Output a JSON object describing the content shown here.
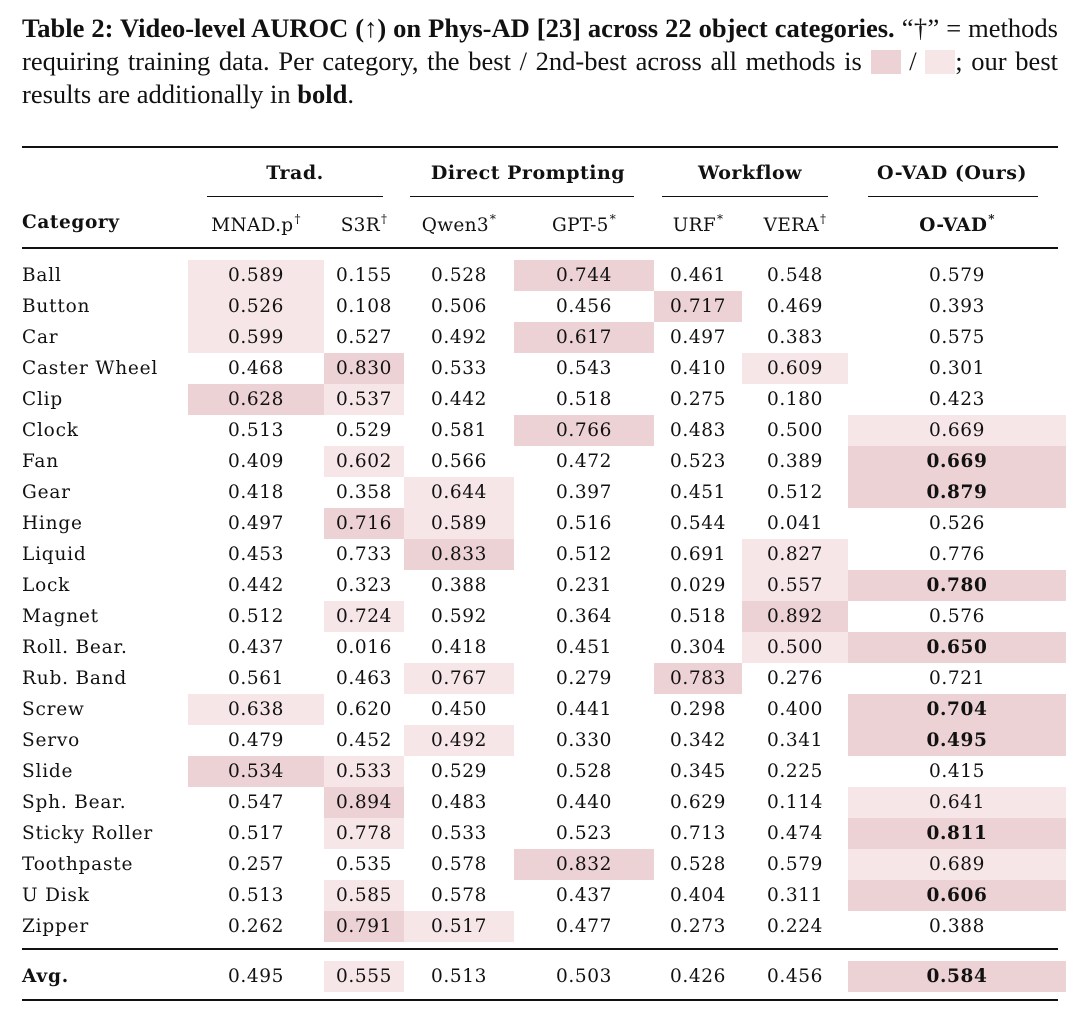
{
  "caption": {
    "bold_lead": "Table 2: Video-level AUROC (↑) on Phys-AD [23] across 22 object categories.",
    "text1": " “†” = methods requiring training data. Per category, the best / 2nd-best across all methods is ",
    "slash": " / ",
    "text2": "; our best results are additionally in ",
    "bold_word": "bold",
    "end": "."
  },
  "colors": {
    "best": "#ecd1d5",
    "second": "#f7e6e8"
  },
  "groups": [
    "Trad.",
    "Direct Prompting",
    "Workflow",
    "O-VAD (Ours)"
  ],
  "columns": [
    {
      "label": "Category",
      "mark": ""
    },
    {
      "label": "MNAD.p",
      "mark": "†"
    },
    {
      "label": "S3R",
      "mark": "†"
    },
    {
      "label": "Qwen3",
      "mark": "*"
    },
    {
      "label": "GPT-5",
      "mark": "*"
    },
    {
      "label": "URF",
      "mark": "*"
    },
    {
      "label": "VERA",
      "mark": "†"
    },
    {
      "label": "O-VAD",
      "mark": "*"
    }
  ],
  "rows": [
    {
      "category": "Ball",
      "values": [
        "0.589",
        "0.155",
        "0.528",
        "0.744",
        "0.461",
        "0.548",
        "0.579"
      ],
      "hl": [
        "s",
        "",
        "",
        "b",
        "",
        "",
        ""
      ]
    },
    {
      "category": "Button",
      "values": [
        "0.526",
        "0.108",
        "0.506",
        "0.456",
        "0.717",
        "0.469",
        "0.393"
      ],
      "hl": [
        "s",
        "",
        "",
        "",
        "b",
        "",
        ""
      ]
    },
    {
      "category": "Car",
      "values": [
        "0.599",
        "0.527",
        "0.492",
        "0.617",
        "0.497",
        "0.383",
        "0.575"
      ],
      "hl": [
        "s",
        "",
        "",
        "b",
        "",
        "",
        ""
      ]
    },
    {
      "category": "Caster Wheel",
      "values": [
        "0.468",
        "0.830",
        "0.533",
        "0.543",
        "0.410",
        "0.609",
        "0.301"
      ],
      "hl": [
        "",
        "b",
        "",
        "",
        "",
        "s",
        ""
      ]
    },
    {
      "category": "Clip",
      "values": [
        "0.628",
        "0.537",
        "0.442",
        "0.518",
        "0.275",
        "0.180",
        "0.423"
      ],
      "hl": [
        "b",
        "s",
        "",
        "",
        "",
        "",
        ""
      ]
    },
    {
      "category": "Clock",
      "values": [
        "0.513",
        "0.529",
        "0.581",
        "0.766",
        "0.483",
        "0.500",
        "0.669"
      ],
      "hl": [
        "",
        "",
        "",
        "b",
        "",
        "",
        "s"
      ]
    },
    {
      "category": "Fan",
      "values": [
        "0.409",
        "0.602",
        "0.566",
        "0.472",
        "0.523",
        "0.389",
        "0.669"
      ],
      "hl": [
        "",
        "s",
        "",
        "",
        "",
        "",
        "bB"
      ]
    },
    {
      "category": "Gear",
      "values": [
        "0.418",
        "0.358",
        "0.644",
        "0.397",
        "0.451",
        "0.512",
        "0.879"
      ],
      "hl": [
        "",
        "",
        "s",
        "",
        "",
        "",
        "bB"
      ]
    },
    {
      "category": "Hinge",
      "values": [
        "0.497",
        "0.716",
        "0.589",
        "0.516",
        "0.544",
        "0.041",
        "0.526"
      ],
      "hl": [
        "",
        "b",
        "s",
        "",
        "",
        "",
        ""
      ]
    },
    {
      "category": "Liquid",
      "values": [
        "0.453",
        "0.733",
        "0.833",
        "0.512",
        "0.691",
        "0.827",
        "0.776"
      ],
      "hl": [
        "",
        "",
        "b",
        "",
        "",
        "s",
        ""
      ]
    },
    {
      "category": "Lock",
      "values": [
        "0.442",
        "0.323",
        "0.388",
        "0.231",
        "0.029",
        "0.557",
        "0.780"
      ],
      "hl": [
        "",
        "",
        "",
        "",
        "",
        "s",
        "bB"
      ]
    },
    {
      "category": "Magnet",
      "values": [
        "0.512",
        "0.724",
        "0.592",
        "0.364",
        "0.518",
        "0.892",
        "0.576"
      ],
      "hl": [
        "",
        "s",
        "",
        "",
        "",
        "b",
        ""
      ]
    },
    {
      "category": "Roll. Bear.",
      "values": [
        "0.437",
        "0.016",
        "0.418",
        "0.451",
        "0.304",
        "0.500",
        "0.650"
      ],
      "hl": [
        "",
        "",
        "",
        "",
        "",
        "s",
        "bB"
      ]
    },
    {
      "category": "Rub. Band",
      "values": [
        "0.561",
        "0.463",
        "0.767",
        "0.279",
        "0.783",
        "0.276",
        "0.721"
      ],
      "hl": [
        "",
        "",
        "s",
        "",
        "b",
        "",
        ""
      ]
    },
    {
      "category": "Screw",
      "values": [
        "0.638",
        "0.620",
        "0.450",
        "0.441",
        "0.298",
        "0.400",
        "0.704"
      ],
      "hl": [
        "s",
        "",
        "",
        "",
        "",
        "",
        "bB"
      ]
    },
    {
      "category": "Servo",
      "values": [
        "0.479",
        "0.452",
        "0.492",
        "0.330",
        "0.342",
        "0.341",
        "0.495"
      ],
      "hl": [
        "",
        "",
        "s",
        "",
        "",
        "",
        "bB"
      ]
    },
    {
      "category": "Slide",
      "values": [
        "0.534",
        "0.533",
        "0.529",
        "0.528",
        "0.345",
        "0.225",
        "0.415"
      ],
      "hl": [
        "b",
        "s",
        "",
        "",
        "",
        "",
        ""
      ]
    },
    {
      "category": "Sph. Bear.",
      "values": [
        "0.547",
        "0.894",
        "0.483",
        "0.440",
        "0.629",
        "0.114",
        "0.641"
      ],
      "hl": [
        "",
        "b",
        "",
        "",
        "",
        "",
        "s"
      ]
    },
    {
      "category": "Sticky Roller",
      "values": [
        "0.517",
        "0.778",
        "0.533",
        "0.523",
        "0.713",
        "0.474",
        "0.811"
      ],
      "hl": [
        "",
        "s",
        "",
        "",
        "",
        "",
        "bB"
      ]
    },
    {
      "category": "Toothpaste",
      "values": [
        "0.257",
        "0.535",
        "0.578",
        "0.832",
        "0.528",
        "0.579",
        "0.689"
      ],
      "hl": [
        "",
        "",
        "",
        "b",
        "",
        "",
        "s"
      ]
    },
    {
      "category": "U Disk",
      "values": [
        "0.513",
        "0.585",
        "0.578",
        "0.437",
        "0.404",
        "0.311",
        "0.606"
      ],
      "hl": [
        "",
        "s",
        "",
        "",
        "",
        "",
        "bB"
      ]
    },
    {
      "category": "Zipper",
      "values": [
        "0.262",
        "0.791",
        "0.517",
        "0.477",
        "0.273",
        "0.224",
        "0.388"
      ],
      "hl": [
        "",
        "b",
        "s",
        "",
        "",
        "",
        ""
      ]
    }
  ],
  "avg": {
    "category": "Avg.",
    "values": [
      "0.495",
      "0.555",
      "0.513",
      "0.503",
      "0.426",
      "0.456",
      "0.584"
    ],
    "hl": [
      "",
      "s",
      "",
      "",
      "",
      "",
      "bB"
    ]
  }
}
